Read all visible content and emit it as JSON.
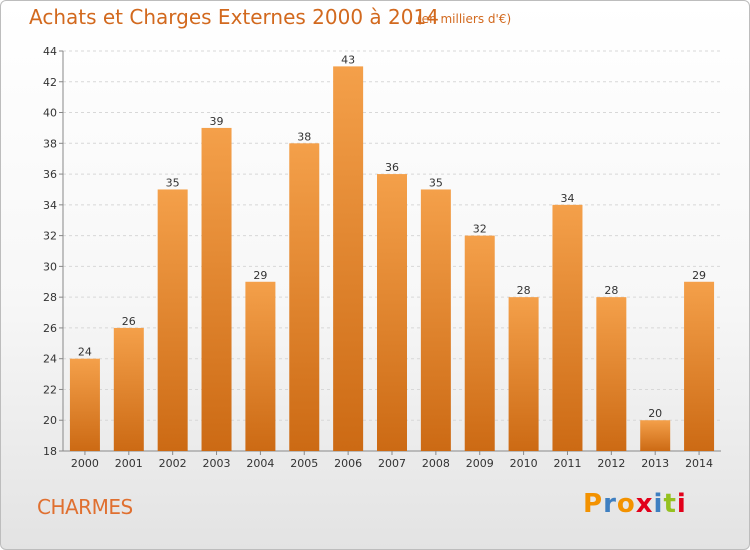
{
  "title": "Achats et Charges Externes 2000 à 2014",
  "subtitle": "(en milliers d'€)",
  "commune": "CHARMES",
  "logo": {
    "letters": [
      "P",
      "r",
      "o",
      "x",
      "i",
      "t",
      "i"
    ],
    "colors": [
      "#f39200",
      "#3e7fc1",
      "#f39200",
      "#e2001a",
      "#3e7fc1",
      "#95c11f",
      "#e2001a"
    ]
  },
  "colors": {
    "bar_top": "#f4a04a",
    "bar_bottom": "#cc6a14",
    "title": "#d2691e"
  },
  "chart_data": {
    "type": "bar",
    "categories": [
      "2000",
      "2001",
      "2002",
      "2003",
      "2004",
      "2005",
      "2006",
      "2007",
      "2008",
      "2009",
      "2010",
      "2011",
      "2012",
      "2013",
      "2014"
    ],
    "values": [
      24,
      26,
      35,
      39,
      29,
      38,
      43,
      36,
      35,
      32,
      28,
      34,
      28,
      20,
      29
    ],
    "title": "Achats et Charges Externes 2000 à 2014",
    "xlabel": "",
    "ylabel": "",
    "ylim": [
      18,
      44
    ],
    "yticks": [
      18,
      20,
      22,
      24,
      26,
      28,
      30,
      32,
      34,
      36,
      38,
      40,
      42,
      44
    ],
    "grid": true,
    "legend": "none"
  }
}
